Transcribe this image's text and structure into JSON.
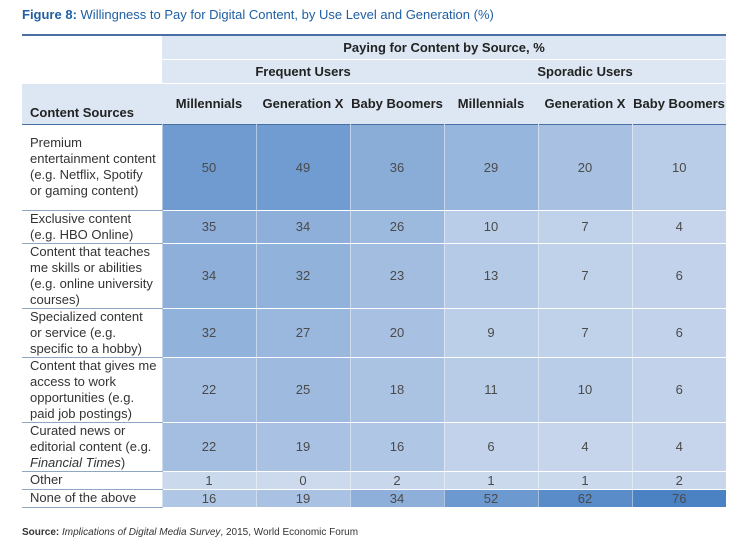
{
  "figure": {
    "label": "Figure 8:",
    "title": "Willingness to Pay for Digital Content, by Use Level and Generation (%)"
  },
  "source": {
    "label": "Source:",
    "title": "Implications of Digital Media Survey",
    "rest": ", 2015, World Economic Forum"
  },
  "chart_data": {
    "type": "table",
    "title": "Willingness to Pay for Digital Content, by Use Level and Generation (%)",
    "super_header": "Paying for Content by Source, %",
    "row_header": "Content Sources",
    "groups": [
      "Frequent Users",
      "Sporadic Users"
    ],
    "columns": [
      "Millennials",
      "Generation X",
      "Baby Boomers",
      "Millennials",
      "Generation X",
      "Baby Boomers"
    ],
    "rows": [
      {
        "label": "Premium entertainment content (e.g. Netflix, Spotify or gaming content)",
        "values": [
          50,
          49,
          36,
          29,
          20,
          10
        ]
      },
      {
        "label": "Exclusive content (e.g. HBO Online)",
        "values": [
          35,
          34,
          26,
          10,
          7,
          4
        ]
      },
      {
        "label": "Content that teaches me skills or abilities (e.g. online university courses)",
        "values": [
          34,
          32,
          23,
          13,
          7,
          6
        ]
      },
      {
        "label": "Specialized content or service (e.g. specific to a hobby)",
        "values": [
          32,
          27,
          20,
          9,
          7,
          6
        ]
      },
      {
        "label": "Content that gives me access to work opportunities (e.g. paid job postings)",
        "values": [
          22,
          25,
          18,
          11,
          10,
          6
        ]
      },
      {
        "label": "Curated news or editorial content (e.g. ",
        "label_italic": "Financial Times",
        "label_after": ")",
        "values": [
          22,
          19,
          16,
          6,
          4,
          4
        ]
      },
      {
        "label": "Other",
        "values": [
          1,
          0,
          2,
          1,
          1,
          2
        ]
      },
      {
        "label": "None of the above",
        "values": [
          16,
          19,
          34,
          52,
          62,
          76
        ]
      }
    ]
  }
}
